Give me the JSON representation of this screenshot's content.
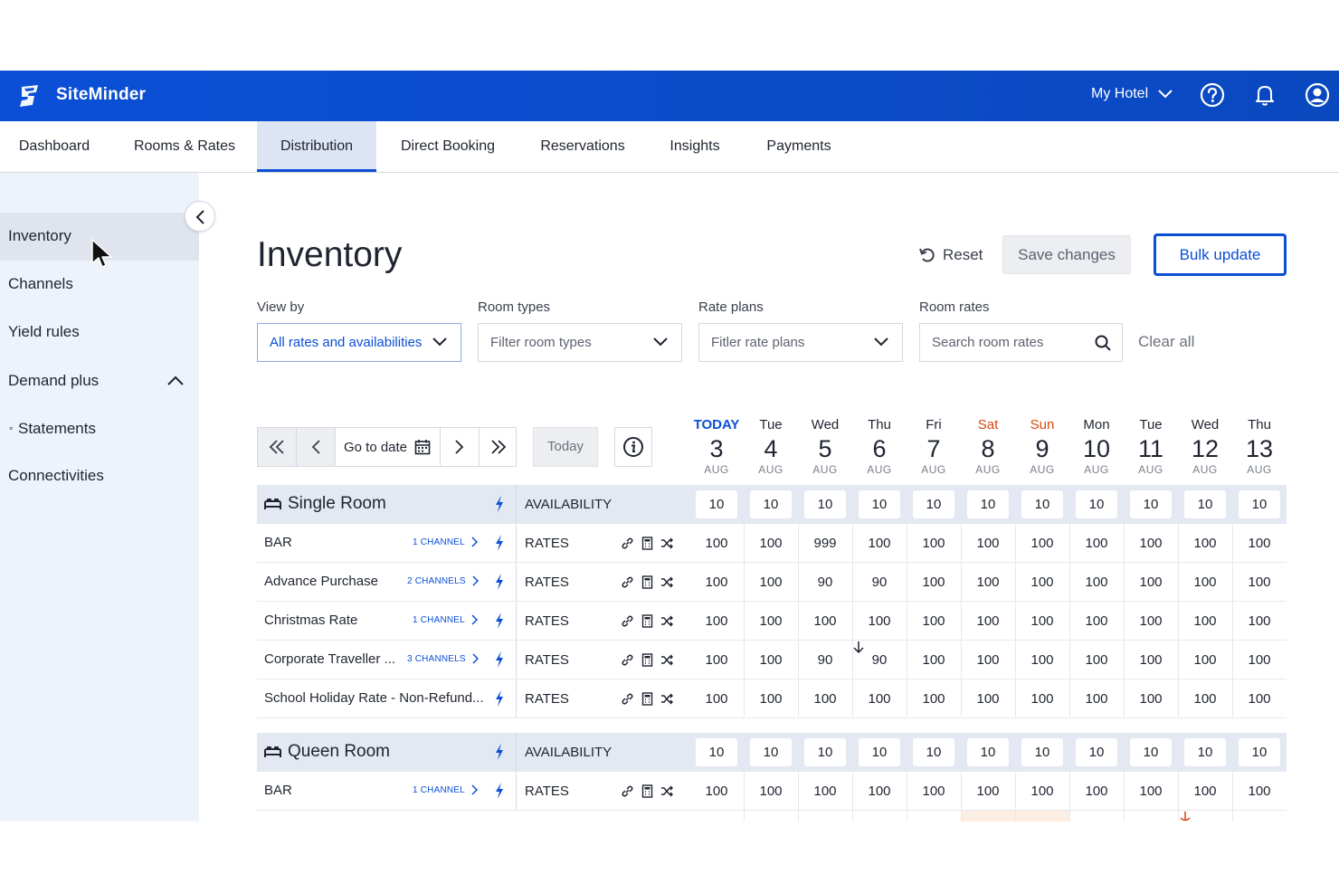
{
  "brand": {
    "name": "SiteMinder",
    "hotel": "My Hotel",
    "accent": "#0a4fd6"
  },
  "nav": {
    "tabs": [
      "Dashboard",
      "Rooms & Rates",
      "Distribution",
      "Direct Booking",
      "Reservations",
      "Insights",
      "Payments"
    ],
    "active": "Distribution"
  },
  "sidebar": {
    "items": [
      "Inventory",
      "Channels",
      "Yield rules",
      "Demand plus",
      "Statements",
      "Connectivities"
    ],
    "active": "Inventory"
  },
  "page": {
    "title": "Inventory",
    "reset_label": "Reset",
    "save_label": "Save changes",
    "bulk_label": "Bulk update"
  },
  "filters": {
    "view_by": {
      "label": "View by",
      "value": "All rates and availabilities"
    },
    "room_types": {
      "label": "Room types",
      "placeholder": "Filter room types"
    },
    "rate_plans": {
      "label": "Rate plans",
      "placeholder": "Fitler rate plans"
    },
    "room_rates": {
      "label": "Room rates",
      "placeholder": "Search room rates"
    },
    "clear_all": "Clear all"
  },
  "toolbar": {
    "goto_label": "Go to date",
    "today_label": "Today"
  },
  "dates": [
    {
      "dow": "TODAY",
      "num": "3",
      "mon": "AUG",
      "kind": "today"
    },
    {
      "dow": "Tue",
      "num": "4",
      "mon": "AUG",
      "kind": ""
    },
    {
      "dow": "Wed",
      "num": "5",
      "mon": "AUG",
      "kind": ""
    },
    {
      "dow": "Thu",
      "num": "6",
      "mon": "AUG",
      "kind": ""
    },
    {
      "dow": "Fri",
      "num": "7",
      "mon": "AUG",
      "kind": ""
    },
    {
      "dow": "Sat",
      "num": "8",
      "mon": "AUG",
      "kind": "weekend"
    },
    {
      "dow": "Sun",
      "num": "9",
      "mon": "AUG",
      "kind": "weekend"
    },
    {
      "dow": "Mon",
      "num": "10",
      "mon": "AUG",
      "kind": ""
    },
    {
      "dow": "Tue",
      "num": "11",
      "mon": "AUG",
      "kind": ""
    },
    {
      "dow": "Wed",
      "num": "12",
      "mon": "AUG",
      "kind": ""
    },
    {
      "dow": "Thu",
      "num": "13",
      "mon": "AUG",
      "kind": ""
    }
  ],
  "rooms": [
    {
      "name": "Single Room",
      "availability_label": "AVAILABILITY",
      "availability": [
        "10",
        "10",
        "10",
        "10",
        "10",
        "10",
        "10",
        "10",
        "10",
        "10",
        "10"
      ],
      "plans": [
        {
          "name": "BAR",
          "channels": "1 CHANNEL",
          "label": "RATES",
          "values": [
            "100",
            "100",
            "999",
            "100",
            "100",
            "100",
            "100",
            "100",
            "100",
            "100",
            "100"
          ]
        },
        {
          "name": "Advance Purchase",
          "channels": "2 CHANNELS",
          "label": "RATES",
          "values": [
            "100",
            "100",
            "90",
            "90",
            "100",
            "100",
            "100",
            "100",
            "100",
            "100",
            "100"
          ]
        },
        {
          "name": "Christmas Rate",
          "channels": "1 CHANNEL",
          "label": "RATES",
          "values": [
            "100",
            "100",
            "100",
            "100",
            "100",
            "100",
            "100",
            "100",
            "100",
            "100",
            "100"
          ]
        },
        {
          "name": "Corporate Traveller ...",
          "channels": "3 CHANNELS",
          "label": "RATES",
          "values": [
            "100",
            "100",
            "90",
            "90",
            "100",
            "100",
            "100",
            "100",
            "100",
            "100",
            "100"
          ]
        },
        {
          "name": "School Holiday Rate - Non-Refund...",
          "channels": "",
          "label": "RATES",
          "values": [
            "100",
            "100",
            "100",
            "100",
            "100",
            "100",
            "100",
            "100",
            "100",
            "100",
            "100"
          ]
        }
      ]
    },
    {
      "name": "Queen Room",
      "availability_label": "AVAILABILITY",
      "availability": [
        "10",
        "10",
        "10",
        "10",
        "10",
        "10",
        "10",
        "10",
        "10",
        "10",
        "10"
      ],
      "plans": [
        {
          "name": "BAR",
          "channels": "1 CHANNEL",
          "label": "RATES",
          "values": [
            "100",
            "100",
            "100",
            "100",
            "100",
            "100",
            "100",
            "100",
            "100",
            "100",
            "100"
          ]
        }
      ]
    }
  ]
}
